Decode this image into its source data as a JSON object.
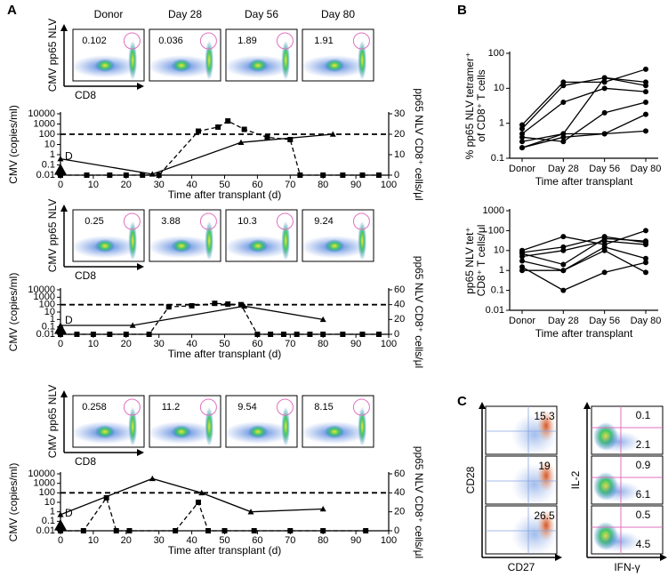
{
  "panel_a": {
    "label": "A",
    "columns": [
      "Donor",
      "Day 28",
      "Day 56",
      "Day 80"
    ],
    "y_label": "CMV pp65 NLV",
    "x_label": "CD8",
    "rows": [
      [
        "0.102",
        "0.036",
        "1.89",
        "1.91"
      ],
      [
        "0.25",
        "3.88",
        "10.3",
        "9.24"
      ],
      [
        "0.258",
        "11.2",
        "9.54",
        "8.15"
      ]
    ]
  },
  "panel_b": {
    "label": "B"
  },
  "panel_c": {
    "label": "C",
    "left": {
      "y_label": "CD28",
      "x_label": "CD27",
      "values": [
        "15.3",
        "19",
        "26.5"
      ]
    },
    "right": {
      "y_label": "IL-2",
      "x_label": "IFN-γ",
      "upper": [
        "0.1",
        "0.9",
        "0.5"
      ],
      "lower": [
        "2.1",
        "6.1",
        "4.5"
      ]
    }
  },
  "chart_data": [
    {
      "type": "line",
      "xlabel": "Time after transplant (d)",
      "ylabel": "CMV (copies/ml)",
      "y2label": "pp65 NLV CD8⁺ cells/μl",
      "log_y": true,
      "xlim": [
        0,
        100
      ],
      "xticks": [
        0,
        10,
        20,
        30,
        40,
        50,
        60,
        70,
        80,
        90,
        100
      ],
      "ylim": [
        0.01,
        10000
      ],
      "yticks": [
        0.01,
        0.1,
        1,
        10,
        100,
        1000,
        10000
      ],
      "y2lim": [
        0,
        30
      ],
      "y2ticks": [
        0,
        10,
        20,
        30
      ],
      "hline": 100,
      "annotation": "D",
      "series": [
        {
          "marker": "square",
          "dashed": true,
          "color": "#000000",
          "x": [
            0,
            8,
            15,
            20,
            25,
            30,
            42,
            48,
            51,
            56,
            63,
            70,
            73,
            80,
            86,
            92,
            97
          ],
          "values": [
            0.01,
            0.01,
            0.01,
            0.01,
            0.01,
            0.01,
            200,
            500,
            2000,
            300,
            50,
            30,
            0.01,
            0.01,
            0.01,
            0.01,
            0.01
          ]
        },
        {
          "marker": "triangle",
          "dashed": false,
          "color": "#000000",
          "axis": "y2",
          "x": [
            0,
            28,
            55,
            83
          ],
          "values": [
            8,
            0.5,
            16,
            20
          ]
        }
      ]
    },
    {
      "type": "line",
      "xlabel": "Time after transplant (d)",
      "ylabel": "CMV (copies/ml)",
      "y2label": "pp65 NLV CD8⁺ cells/μl",
      "log_y": true,
      "xlim": [
        0,
        100
      ],
      "xticks": [
        0,
        10,
        20,
        30,
        40,
        50,
        60,
        70,
        80,
        90,
        100
      ],
      "ylim": [
        0.01,
        10000
      ],
      "yticks": [
        0.01,
        0.1,
        1,
        10,
        100,
        1000,
        10000
      ],
      "y2lim": [
        0,
        60
      ],
      "y2ticks": [
        0,
        20,
        40,
        60
      ],
      "hline": 100,
      "annotation": "D",
      "series": [
        {
          "marker": "square",
          "dashed": true,
          "color": "#000000",
          "x": [
            0,
            5,
            10,
            15,
            20,
            27,
            33,
            40,
            47,
            51,
            55,
            60,
            64,
            68,
            72,
            76,
            80,
            86,
            92,
            97
          ],
          "values": [
            0.01,
            0.01,
            0.01,
            0.01,
            0.01,
            0.01,
            50,
            70,
            150,
            120,
            100,
            0.01,
            0.01,
            0.01,
            0.01,
            0.01,
            0.01,
            0.01,
            0.01,
            0.01
          ]
        },
        {
          "marker": "triangle",
          "dashed": false,
          "color": "#000000",
          "axis": "y2",
          "x": [
            0,
            22,
            56,
            80
          ],
          "values": [
            12,
            12,
            38,
            20
          ]
        }
      ]
    },
    {
      "type": "line",
      "xlabel": "Time after transplant (d)",
      "ylabel": "CMV (copies/ml)",
      "y2label": "pp65 NLV CD8⁺ cells/μl",
      "log_y": true,
      "xlim": [
        0,
        100
      ],
      "xticks": [
        0,
        10,
        20,
        30,
        40,
        50,
        60,
        70,
        80,
        90,
        100
      ],
      "ylim": [
        0.01,
        10000
      ],
      "yticks": [
        0.01,
        0.1,
        1,
        10,
        100,
        1000,
        10000
      ],
      "y2lim": [
        0,
        60
      ],
      "y2ticks": [
        0,
        20,
        40,
        60
      ],
      "hline": 100,
      "annotation": "D",
      "series": [
        {
          "marker": "square",
          "dashed": true,
          "color": "#000000",
          "x": [
            0,
            7,
            14,
            17,
            21,
            35,
            42,
            45,
            50,
            59,
            70,
            80,
            93
          ],
          "values": [
            0.01,
            0.01,
            30,
            0.01,
            0.01,
            0.01,
            10,
            0.01,
            0.01,
            0.01,
            0.01,
            0.01,
            0.01
          ]
        },
        {
          "marker": "triangle",
          "dashed": false,
          "color": "#000000",
          "axis": "y2",
          "x": [
            0,
            28,
            43,
            58,
            80
          ],
          "values": [
            17,
            55,
            40,
            20,
            23
          ]
        }
      ]
    },
    {
      "type": "line",
      "categories": [
        "Donor",
        "Day 28",
        "Day 56",
        "Day 80"
      ],
      "xlabel": "Time after transplant",
      "ylabel": [
        "% pp65 NLV tetramer⁺",
        "of CD8⁺ T cells"
      ],
      "log_y": true,
      "ylim": [
        0.1,
        100
      ],
      "yticks": [
        0.1,
        1,
        10,
        100
      ],
      "color": "#000000",
      "series": [
        {
          "values": [
            0.9,
            15,
            15,
            35
          ]
        },
        {
          "values": [
            0.7,
            12,
            20,
            12
          ]
        },
        {
          "values": [
            0.5,
            4,
            10,
            8
          ]
        },
        {
          "values": [
            0.3,
            0.5,
            20,
            15
          ]
        },
        {
          "values": [
            0.4,
            0.3,
            2,
            4
          ]
        },
        {
          "values": [
            0.2,
            0.4,
            0.5,
            1.8
          ]
        },
        {
          "values": [
            0.2,
            0.5,
            0.5,
            0.6
          ]
        }
      ]
    },
    {
      "type": "line",
      "categories": [
        "Donor",
        "Day 28",
        "Day 56",
        "Day 80"
      ],
      "xlabel": "Time after transplant",
      "ylabel": [
        "pp65 NLV tet⁺",
        "CD8⁺ T cells/μl"
      ],
      "log_y": true,
      "ylim": [
        0.01,
        1000
      ],
      "yticks": [
        0.01,
        0.1,
        1,
        10,
        100,
        1000
      ],
      "color": "#000000",
      "series": [
        {
          "values": [
            10,
            50,
            20,
            100
          ]
        },
        {
          "values": [
            8,
            15,
            50,
            25
          ]
        },
        {
          "values": [
            5,
            10,
            30,
            20
          ]
        },
        {
          "values": [
            3,
            1,
            15,
            4
          ]
        },
        {
          "values": [
            1.5,
            0.1,
            0.8,
            2.5
          ]
        },
        {
          "values": [
            1,
            1,
            10,
            0.8
          ]
        },
        {
          "values": [
            7,
            2,
            40,
            30
          ]
        }
      ]
    }
  ]
}
